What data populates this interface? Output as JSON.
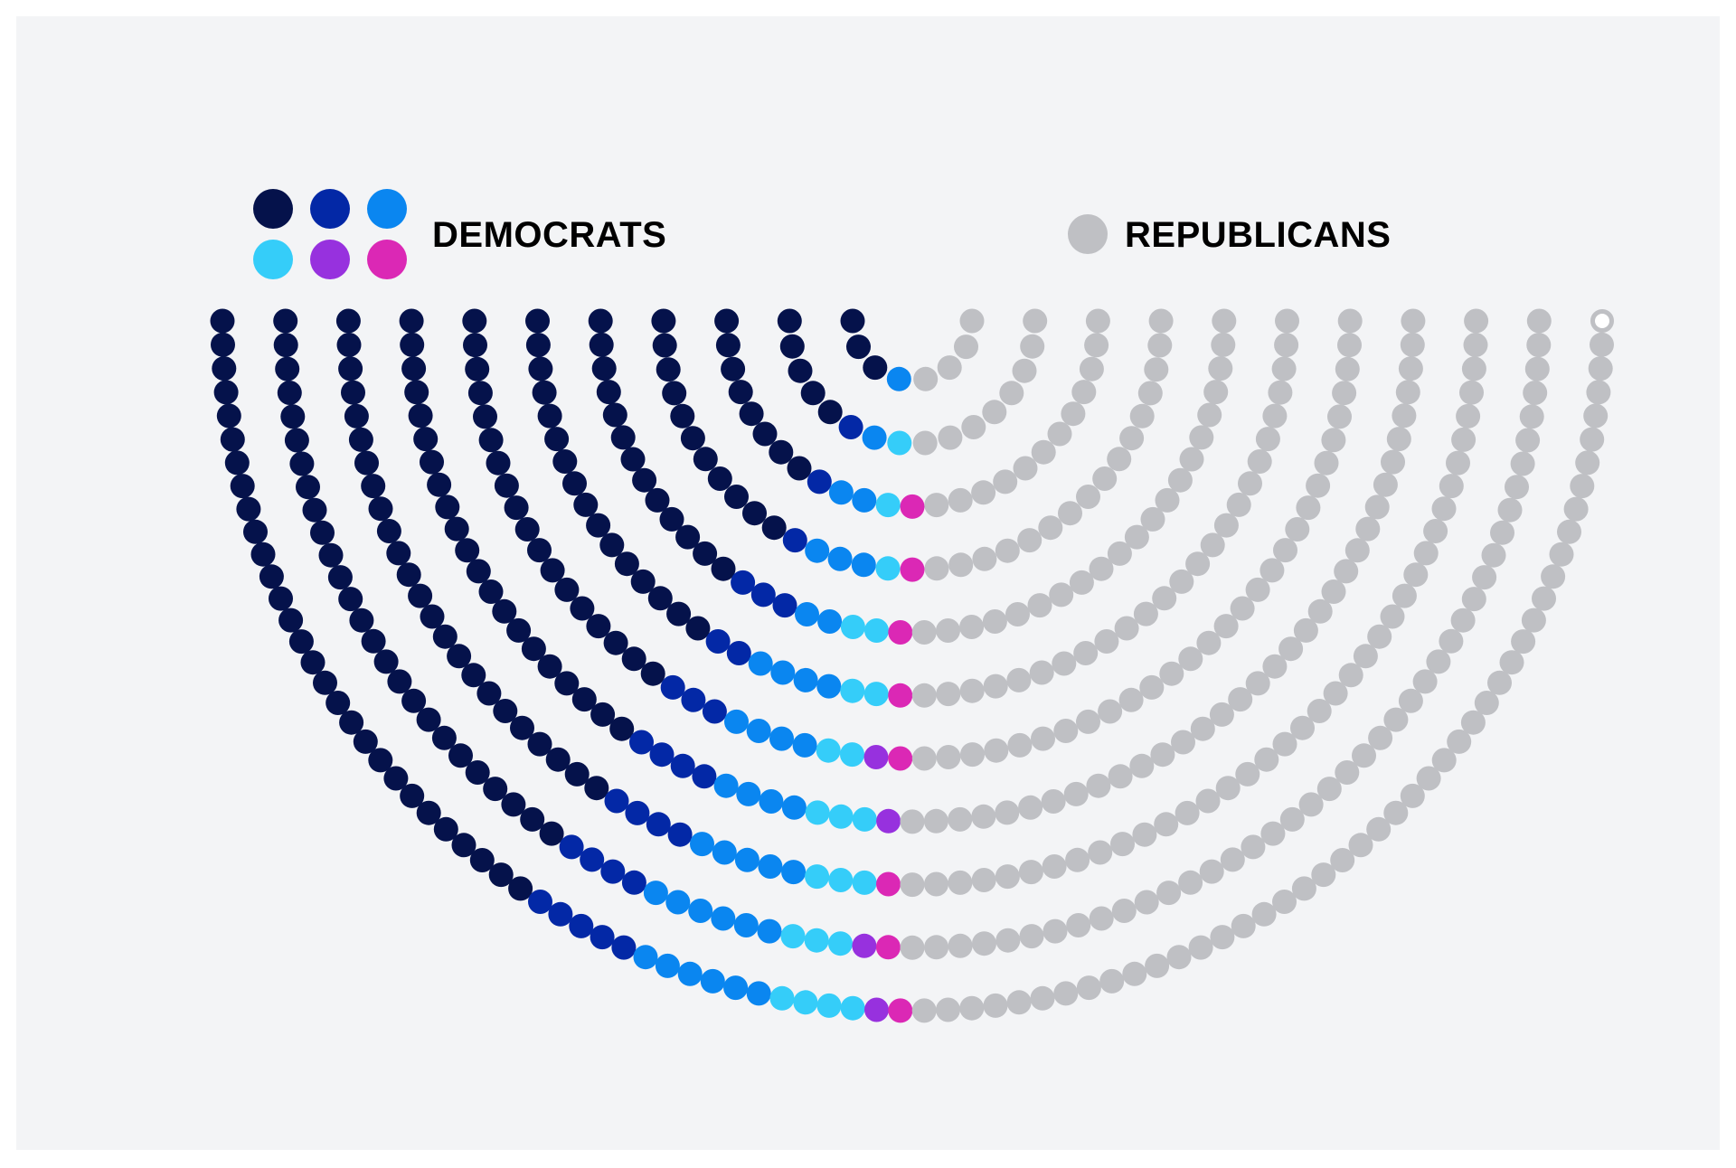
{
  "chart_data": {
    "type": "parliament",
    "title": "",
    "legend": [
      {
        "label": "DEMOCRATS",
        "swatches": [
          "#05124b",
          "#0328a6",
          "#0a86f0",
          "#35cdf9",
          "#9731de",
          "#db28b5"
        ]
      },
      {
        "label": "REPUBLICANS",
        "swatches": [
          "#bfc0c4"
        ]
      }
    ],
    "groups": [
      {
        "party": "DEMOCRATS",
        "color": "#05124b",
        "seats": 174
      },
      {
        "party": "DEMOCRATS",
        "color": "#0328a6",
        "seats": 28
      },
      {
        "party": "DEMOCRATS",
        "color": "#0a86f0",
        "seats": 38
      },
      {
        "party": "DEMOCRATS",
        "color": "#35cdf9",
        "seats": 22
      },
      {
        "party": "DEMOCRATS",
        "color": "#9731de",
        "seats": 4
      },
      {
        "party": "DEMOCRATS",
        "color": "#db28b5",
        "seats": 8
      },
      {
        "party": "REPUBLICANS",
        "color": "#bfc0c4",
        "seats": 274
      },
      {
        "party": "REPUBLICANS",
        "color": "#bfc0c4",
        "seats": 1,
        "note": "vacant"
      }
    ],
    "rows": 11,
    "layout": "half-donut, opening upward, seats filled left to right"
  }
}
